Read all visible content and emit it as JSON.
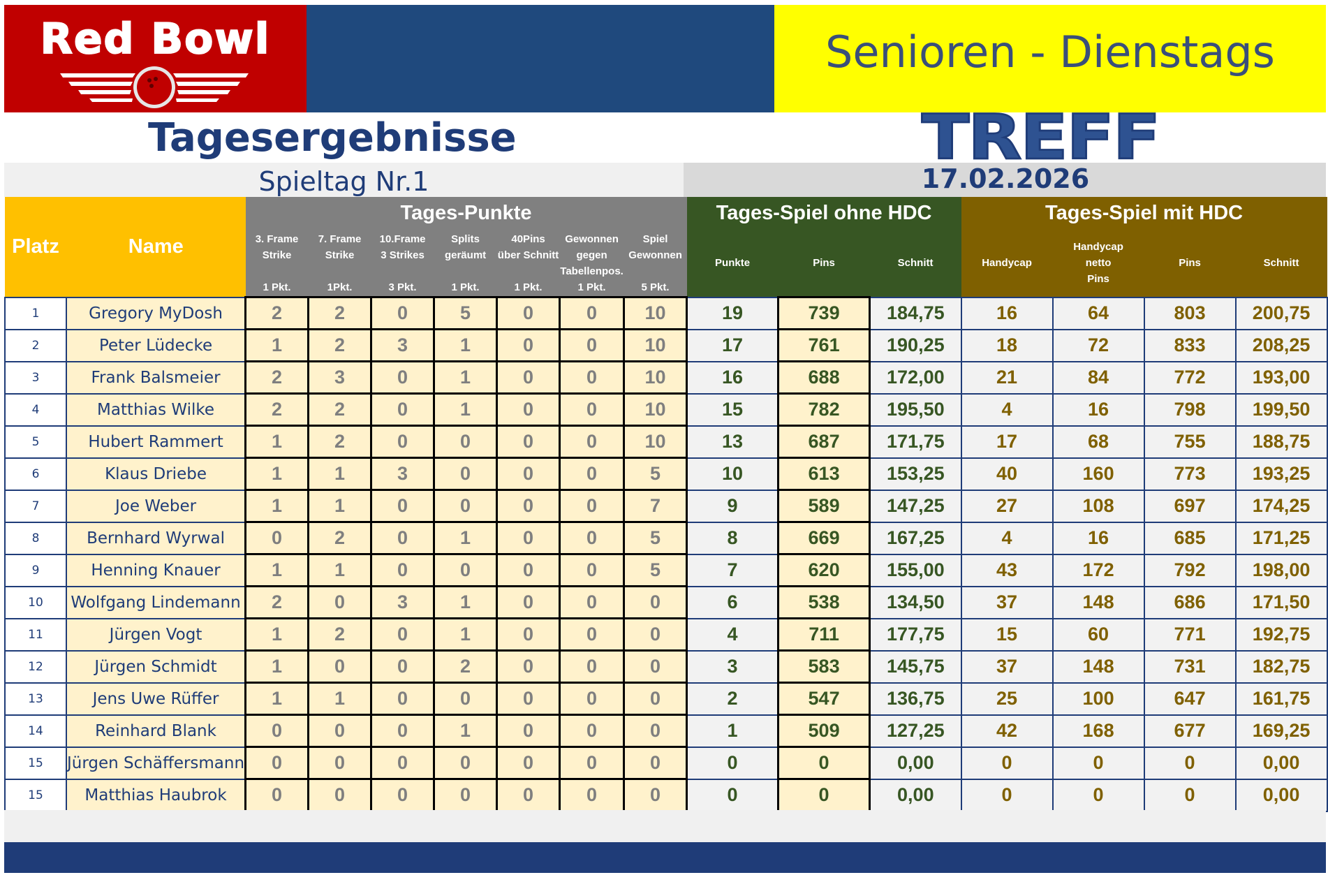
{
  "header": {
    "logo_text": "Red Bowl",
    "banner_title": "Senioren - Dienstags",
    "treff": "TREFF",
    "page_title": "Tagesergebnisse",
    "spieltag": "Spieltag Nr.1",
    "date": "17.02.2026"
  },
  "colors": {
    "brand_red": "#c00000",
    "navy": "#1f497d",
    "banner_yellow": "#ffff00",
    "gold_header": "#ffc000",
    "grey_header": "#808080",
    "green_header": "#375623",
    "brown_header": "#7f6000"
  },
  "table": {
    "col_platz": "Platz",
    "col_name": "Name",
    "group_tagespunkte": "Tages-Punkte",
    "group_ohne_hdc": "Tages-Spiel ohne HDC",
    "group_mit_hdc": "Tages-Spiel mit HDC",
    "sub": {
      "c1": [
        "3. Frame",
        "Strike",
        "",
        "1 Pkt."
      ],
      "c2": [
        "7. Frame",
        "Strike",
        "",
        "1Pkt."
      ],
      "c3": [
        "10.Frame",
        "3 Strikes",
        "",
        "3 Pkt."
      ],
      "c4": [
        "Splits",
        "geräumt",
        "",
        "1 Pkt."
      ],
      "c5": [
        "40Pins",
        "über Schnitt",
        "",
        "1 Pkt."
      ],
      "c6": [
        "Gewonnen",
        "gegen",
        "Tabellenpos.",
        "1 Pkt."
      ],
      "c7": [
        "Spiel",
        "Gewonnen",
        "",
        "5 Pkt."
      ],
      "punkte": "Punkte",
      "pins": "Pins",
      "schnitt": "Schnitt",
      "handycap": "Handycap",
      "netto": [
        "Handycap",
        "netto",
        "Pins"
      ],
      "pins2": "Pins",
      "schnitt2": "Schnitt"
    },
    "rows": [
      [
        "1",
        "Gregory MyDosh",
        "2",
        "2",
        "0",
        "5",
        "0",
        "0",
        "10",
        "19",
        "739",
        "184,75",
        "16",
        "64",
        "803",
        "200,75"
      ],
      [
        "2",
        "Peter Lüdecke",
        "1",
        "2",
        "3",
        "1",
        "0",
        "0",
        "10",
        "17",
        "761",
        "190,25",
        "18",
        "72",
        "833",
        "208,25"
      ],
      [
        "3",
        "Frank Balsmeier",
        "2",
        "3",
        "0",
        "1",
        "0",
        "0",
        "10",
        "16",
        "688",
        "172,00",
        "21",
        "84",
        "772",
        "193,00"
      ],
      [
        "4",
        "Matthias Wilke",
        "2",
        "2",
        "0",
        "1",
        "0",
        "0",
        "10",
        "15",
        "782",
        "195,50",
        "4",
        "16",
        "798",
        "199,50"
      ],
      [
        "5",
        "Hubert Rammert",
        "1",
        "2",
        "0",
        "0",
        "0",
        "0",
        "10",
        "13",
        "687",
        "171,75",
        "17",
        "68",
        "755",
        "188,75"
      ],
      [
        "6",
        "Klaus Driebe",
        "1",
        "1",
        "3",
        "0",
        "0",
        "0",
        "5",
        "10",
        "613",
        "153,25",
        "40",
        "160",
        "773",
        "193,25"
      ],
      [
        "7",
        "Joe Weber",
        "1",
        "1",
        "0",
        "0",
        "0",
        "0",
        "7",
        "9",
        "589",
        "147,25",
        "27",
        "108",
        "697",
        "174,25"
      ],
      [
        "8",
        "Bernhard Wyrwal",
        "0",
        "2",
        "0",
        "1",
        "0",
        "0",
        "5",
        "8",
        "669",
        "167,25",
        "4",
        "16",
        "685",
        "171,25"
      ],
      [
        "9",
        "Henning Knauer",
        "1",
        "1",
        "0",
        "0",
        "0",
        "0",
        "5",
        "7",
        "620",
        "155,00",
        "43",
        "172",
        "792",
        "198,00"
      ],
      [
        "10",
        "Wolfgang Lindemann",
        "2",
        "0",
        "3",
        "1",
        "0",
        "0",
        "0",
        "6",
        "538",
        "134,50",
        "37",
        "148",
        "686",
        "171,50"
      ],
      [
        "11",
        "Jürgen Vogt",
        "1",
        "2",
        "0",
        "1",
        "0",
        "0",
        "0",
        "4",
        "711",
        "177,75",
        "15",
        "60",
        "771",
        "192,75"
      ],
      [
        "12",
        "Jürgen Schmidt",
        "1",
        "0",
        "0",
        "2",
        "0",
        "0",
        "0",
        "3",
        "583",
        "145,75",
        "37",
        "148",
        "731",
        "182,75"
      ],
      [
        "13",
        "Jens Uwe Rüffer",
        "1",
        "1",
        "0",
        "0",
        "0",
        "0",
        "0",
        "2",
        "547",
        "136,75",
        "25",
        "100",
        "647",
        "161,75"
      ],
      [
        "14",
        "Reinhard Blank",
        "0",
        "0",
        "0",
        "1",
        "0",
        "0",
        "0",
        "1",
        "509",
        "127,25",
        "42",
        "168",
        "677",
        "169,25"
      ],
      [
        "15",
        "Jürgen Schäffersmann",
        "0",
        "0",
        "0",
        "0",
        "0",
        "0",
        "0",
        "0",
        "0",
        "0,00",
        "0",
        "0",
        "0",
        "0,00"
      ],
      [
        "15",
        "Matthias Haubrok",
        "0",
        "0",
        "0",
        "0",
        "0",
        "0",
        "0",
        "0",
        "0",
        "0,00",
        "0",
        "0",
        "0",
        "0,00"
      ]
    ]
  }
}
